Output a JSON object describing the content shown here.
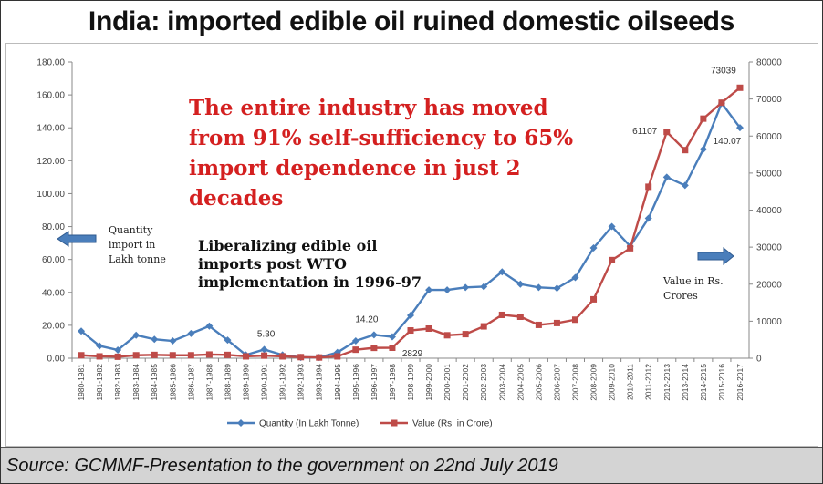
{
  "title": "India: imported edible oil ruined domestic oilseeds",
  "headline": "The entire industry has moved from 91% self-sufficiency to 65% import dependence in just 2 decades",
  "note": "Liberalizing edible oil imports post WTO implementation in 1996-97",
  "left_axis_note": "Quantity import in Lakh tonne",
  "right_axis_note": "Value in Rs. Crores",
  "source": "Source: GCMMF-Presentation to the government on 22nd July 2019",
  "colors": {
    "quantity": "#4a7ebb",
    "value": "#be4b48",
    "arrow": "#4a7ebb",
    "headline": "#d42020"
  },
  "chart_data": {
    "type": "line",
    "categories": [
      "1980-1981",
      "1981-1982",
      "1982-1983",
      "1983-1984",
      "1984-1985",
      "1985-1986",
      "1986-1987",
      "1987-1988",
      "1988-1989",
      "1989-1990",
      "1990-1991",
      "1991-1992",
      "1992-1993",
      "1993-1994",
      "1994-1995",
      "1995-1996",
      "1996-1997",
      "1997-1998",
      "1998-1999",
      "1999-2000",
      "2000-2001",
      "2001-2002",
      "2002-2003",
      "2003-2004",
      "2004-2005",
      "2005-2006",
      "2006-2007",
      "2007-2008",
      "2008-2009",
      "2009-2010",
      "2010-2011",
      "2011-2012",
      "2012-2013",
      "2013-2014",
      "2014-2015",
      "2015-2016",
      "2016-2017"
    ],
    "series": [
      {
        "name": "Quantity (In Lakh Tonne)",
        "axis": "left",
        "values": [
          16.5,
          7.5,
          5.0,
          14.0,
          11.5,
          10.5,
          15.0,
          19.5,
          11.0,
          2.0,
          5.3,
          2.0,
          0.5,
          0.5,
          3.5,
          10.5,
          14.2,
          13.0,
          26.0,
          41.5,
          41.5,
          43.0,
          43.5,
          52.5,
          45.0,
          43.0,
          42.5,
          49.0,
          67.0,
          80.0,
          68.0,
          85.0,
          110.0,
          105.0,
          127.0,
          155.0,
          140.07
        ]
      },
      {
        "name": "Value (Rs. in Crore)",
        "axis": "right",
        "values": [
          800,
          500,
          400,
          800,
          900,
          800,
          800,
          1000,
          900,
          500,
          700,
          500,
          300,
          200,
          500,
          2300,
          2800,
          2829,
          7500,
          8000,
          6200,
          6500,
          8600,
          11700,
          11200,
          9000,
          9500,
          10400,
          15900,
          26500,
          29700,
          46300,
          61107,
          56200,
          64700,
          69000,
          73039
        ]
      }
    ],
    "ylim_left": [
      0,
      180
    ],
    "yticks_left": [
      "0.00",
      "20.00",
      "40.00",
      "60.00",
      "80.00",
      "100.00",
      "120.00",
      "140.00",
      "160.00",
      "180.00"
    ],
    "ylim_right": [
      0,
      80000
    ],
    "yticks_right": [
      "0",
      "10000",
      "20000",
      "30000",
      "40000",
      "50000",
      "60000",
      "70000",
      "80000"
    ],
    "annotations": [
      "5.30",
      "14.20",
      "2829",
      "61107",
      "73039",
      "140.07"
    ],
    "legend_position": "bottom",
    "grid": false
  }
}
